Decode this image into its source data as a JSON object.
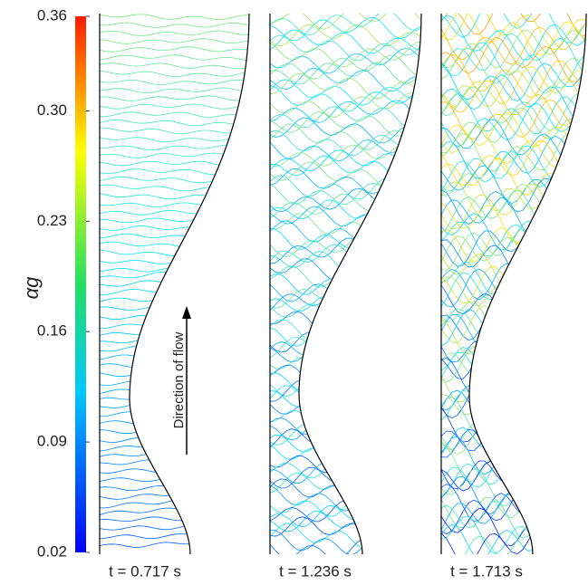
{
  "chart_data": {
    "type": "contour",
    "colorbar": {
      "label": "αg",
      "lim": [
        0.02,
        0.36
      ],
      "ticks": [
        0.02,
        0.09,
        0.16,
        0.23,
        {
          "value": 0.3,
          "label": "0.30"
        },
        0.36
      ]
    },
    "panels": [
      {
        "label": "t = 0.717 s"
      },
      {
        "label": "t = 1.236 s"
      },
      {
        "label": "t = 1.713 s"
      }
    ],
    "annotation": "Direction of flow"
  }
}
